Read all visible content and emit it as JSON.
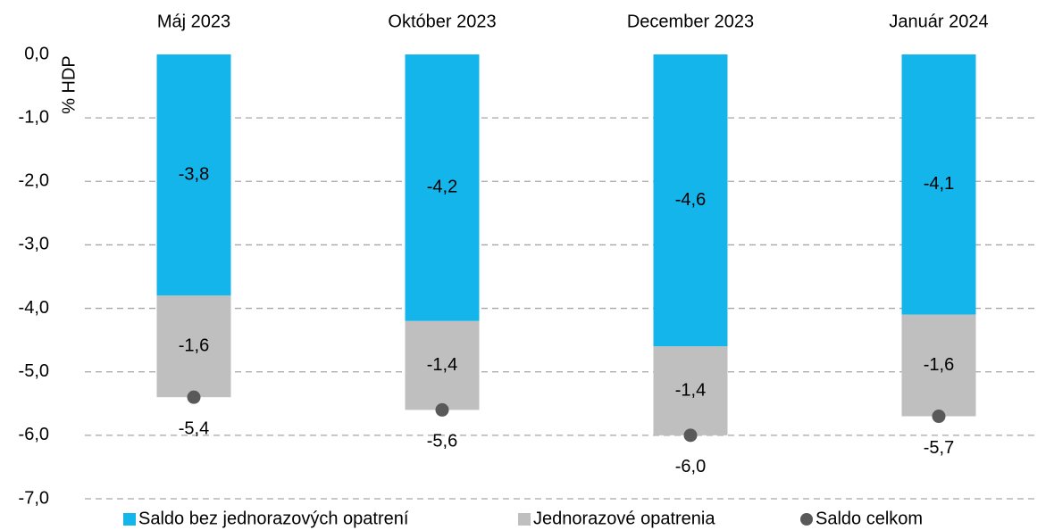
{
  "chart_data": {
    "type": "bar",
    "stacked": true,
    "y_label": "% HDP",
    "categories": [
      "Máj 2023",
      "Október 2023",
      "December 2023",
      "Január 2024"
    ],
    "category_axis_position": "top",
    "series": [
      {
        "name": "Saldo bez jednorazových opatrení",
        "type": "bar",
        "color": "#13b5ea",
        "values": [
          -3.8,
          -4.2,
          -4.6,
          -4.1
        ],
        "value_labels": [
          "-3,8",
          "-4,2",
          "-4,6",
          "-4,1"
        ]
      },
      {
        "name": "Jednorazové opatrenia",
        "type": "bar",
        "color": "#bfbfbf",
        "values": [
          -1.6,
          -1.4,
          -1.4,
          -1.6
        ],
        "value_labels": [
          "-1,6",
          "-1,4",
          "-1,4",
          "-1,6"
        ]
      },
      {
        "name": "Saldo celkom",
        "type": "scatter",
        "color": "#595959",
        "values": [
          -5.4,
          -5.6,
          -6.0,
          -5.7
        ],
        "value_labels": [
          "-5,4",
          "-5,6",
          "-6,0",
          "-5,7"
        ]
      }
    ],
    "ylim": [
      -7,
      0
    ],
    "yticks": [
      {
        "value": 0,
        "label": "0,0"
      },
      {
        "value": -1,
        "label": "-1,0"
      },
      {
        "value": -2,
        "label": "-2,0"
      },
      {
        "value": -3,
        "label": "-3,0"
      },
      {
        "value": -4,
        "label": "-4,0"
      },
      {
        "value": -5,
        "label": "-5,0"
      },
      {
        "value": -6,
        "label": "-6,0"
      },
      {
        "value": -7,
        "label": "-7,0"
      }
    ],
    "grid": true,
    "legend": "bottom"
  }
}
